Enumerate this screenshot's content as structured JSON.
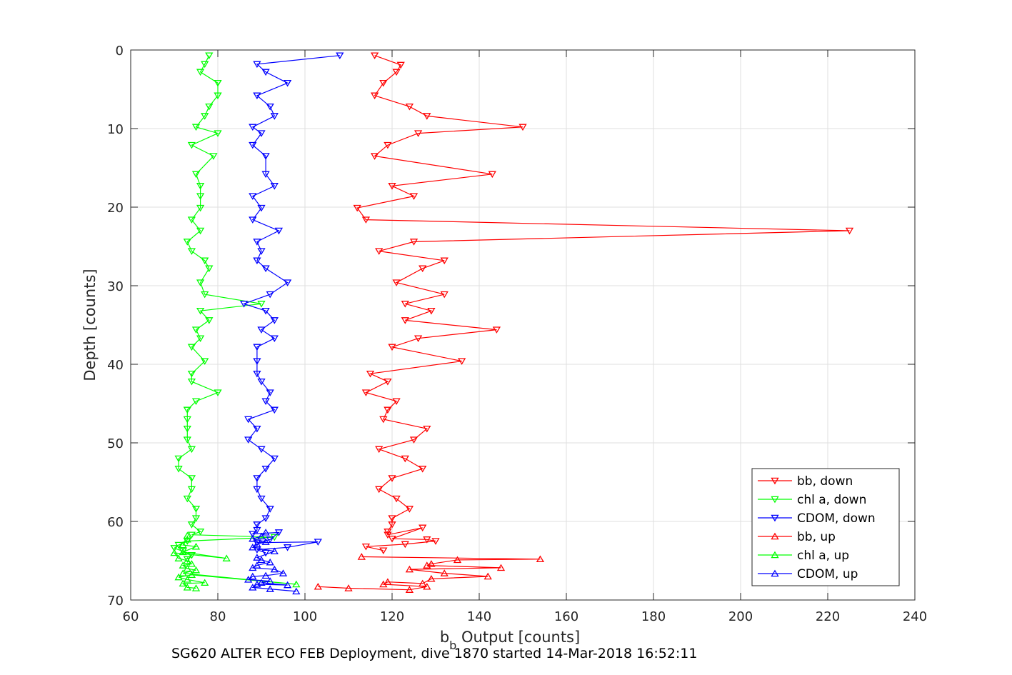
{
  "chart_data": {
    "type": "line",
    "xlabel": "b_b Output [counts]",
    "xlabel_main": "b",
    "xlabel_sub": "b",
    "xlabel_rest": " Output [counts]",
    "ylabel": "Depth [counts]",
    "caption": "SG620 ALTER ECO FEB Deployment, dive 1870 started 14-Mar-2018 16:52:11",
    "xlim": [
      60,
      240
    ],
    "ylim": [
      0,
      70
    ],
    "y_reversed": true,
    "grid": true,
    "legend_position": "bottom-right",
    "xticks": [
      "60",
      "80",
      "100",
      "120",
      "140",
      "160",
      "180",
      "200",
      "220",
      "240"
    ],
    "yticks": [
      "0",
      "10",
      "20",
      "30",
      "40",
      "50",
      "60",
      "70"
    ],
    "xtick_values": [
      60,
      80,
      100,
      120,
      140,
      160,
      180,
      200,
      220,
      240
    ],
    "ytick_values": [
      0,
      10,
      20,
      30,
      40,
      50,
      60,
      70
    ],
    "series": [
      {
        "name": "bb, down",
        "color": "#ff0000",
        "marker": "triangle-down",
        "x": [
          116,
          122,
          121,
          118,
          116,
          124,
          128,
          150,
          126,
          119,
          116,
          143,
          120,
          125,
          112,
          114,
          225,
          125,
          117,
          132,
          127,
          121,
          132,
          123,
          129,
          123,
          144,
          126,
          120,
          136,
          115,
          119,
          114,
          121,
          119,
          118,
          128,
          125,
          117,
          123,
          127,
          120,
          117,
          121,
          124,
          120,
          120,
          119,
          119,
          127,
          120,
          128,
          130,
          123,
          114,
          118
        ],
        "y": [
          0.7,
          1.9,
          2.8,
          4.2,
          5.8,
          7.2,
          8.4,
          9.8,
          10.6,
          12.1,
          13.5,
          15.8,
          17.3,
          18.6,
          20.1,
          21.6,
          23.0,
          24.4,
          25.6,
          26.8,
          27.8,
          29.6,
          31.1,
          32.3,
          33.2,
          34.4,
          35.6,
          36.7,
          37.8,
          39.6,
          41.2,
          42.2,
          43.6,
          44.7,
          45.8,
          47.0,
          48.2,
          49.6,
          50.8,
          52.0,
          53.3,
          54.5,
          55.9,
          57.1,
          58.4,
          59.6,
          60.4,
          61.3,
          61.7,
          60.8,
          62.2,
          62.3,
          62.5,
          62.9,
          63.2,
          63.7
        ]
      },
      {
        "name": "chl a, down",
        "color": "#00ff00",
        "marker": "triangle-down",
        "x": [
          78,
          77,
          76,
          80,
          80,
          78,
          77,
          75,
          80,
          74,
          79,
          75,
          76,
          76,
          76,
          74,
          76,
          73,
          74,
          77,
          78,
          76,
          77,
          90,
          76,
          78,
          75,
          76,
          74,
          77,
          74,
          74,
          80,
          75,
          73,
          73,
          73,
          73,
          74,
          71,
          71,
          74,
          74,
          73,
          75,
          75,
          74,
          76,
          74,
          93,
          73,
          71,
          70,
          72,
          74,
          73
        ],
        "y": [
          0.7,
          1.8,
          2.8,
          4.2,
          5.8,
          7.2,
          8.4,
          9.8,
          10.6,
          12.1,
          13.5,
          15.8,
          17.3,
          18.6,
          20.1,
          21.6,
          23.0,
          24.4,
          25.6,
          26.8,
          27.8,
          29.6,
          31.1,
          32.3,
          33.2,
          34.4,
          35.6,
          36.7,
          37.8,
          39.6,
          41.2,
          42.2,
          43.6,
          44.7,
          45.8,
          47.0,
          48.2,
          49.6,
          50.8,
          52.0,
          53.3,
          54.5,
          55.9,
          57.1,
          58.4,
          59.6,
          60.4,
          61.3,
          61.7,
          62.0,
          62.5,
          63.0,
          63.4,
          63.8,
          64.3,
          64.8
        ]
      },
      {
        "name": "CDOM, down",
        "color": "#0000ff",
        "marker": "triangle-down",
        "x": [
          108,
          89,
          91,
          96,
          89,
          92,
          93,
          88,
          90,
          88,
          91,
          91,
          93,
          88,
          90,
          88,
          94,
          89,
          90,
          89,
          91,
          96,
          92,
          86,
          91,
          93,
          90,
          93,
          89,
          89,
          89,
          90,
          92,
          91,
          93,
          87,
          89,
          87,
          90,
          93,
          91,
          89,
          89,
          90,
          92,
          91,
          89,
          89,
          88,
          94,
          92,
          89,
          103,
          96,
          89,
          91
        ],
        "y": [
          0.7,
          1.8,
          2.8,
          4.2,
          5.8,
          7.2,
          8.4,
          9.8,
          10.6,
          12.1,
          13.5,
          15.8,
          17.3,
          18.6,
          20.1,
          21.6,
          23.0,
          24.4,
          25.6,
          26.8,
          27.8,
          29.6,
          31.1,
          32.3,
          33.2,
          34.4,
          35.6,
          36.7,
          37.8,
          39.6,
          41.2,
          42.2,
          43.6,
          44.7,
          45.8,
          47.0,
          48.2,
          49.6,
          50.8,
          52.0,
          53.3,
          54.5,
          55.9,
          57.1,
          58.4,
          59.6,
          60.4,
          61.1,
          61.6,
          61.4,
          62.3,
          62.7,
          62.6,
          63.3,
          63.6,
          64.0
        ]
      },
      {
        "name": "bb, up",
        "color": "#ff0000",
        "marker": "triangle-up",
        "x": [
          103,
          110,
          124,
          128,
          118,
          119,
          127,
          129,
          142,
          132,
          124,
          145,
          128,
          129,
          135,
          154,
          113
        ],
        "y": [
          68.3,
          68.5,
          68.7,
          68.3,
          68.0,
          67.7,
          67.9,
          67.3,
          67.0,
          66.6,
          66.1,
          65.9,
          65.6,
          65.4,
          64.9,
          64.8,
          64.5
        ]
      },
      {
        "name": "chl a, up",
        "color": "#00ff00",
        "marker": "triangle-up",
        "x": [
          75,
          73,
          72,
          77,
          73,
          71,
          74,
          98,
          72,
          75,
          73,
          72,
          74,
          73,
          71,
          70,
          82,
          72,
          75,
          72,
          73,
          73
        ],
        "y": [
          68.5,
          68.4,
          67.9,
          67.8,
          67.4,
          67.1,
          66.8,
          68.0,
          66.6,
          66.2,
          66.0,
          65.6,
          65.4,
          65.0,
          64.7,
          64.0,
          64.7,
          63.9,
          63.2,
          63.0,
          62.3,
          61.8
        ]
      },
      {
        "name": "CDOM, up",
        "color": "#0000ff",
        "marker": "triangle-up",
        "x": [
          98,
          92,
          88,
          89,
          96,
          90,
          92,
          87,
          88,
          91,
          95,
          93,
          88,
          89,
          92,
          90,
          89,
          93,
          88,
          89,
          91,
          88,
          90,
          91
        ],
        "y": [
          68.9,
          68.6,
          68.4,
          68.0,
          68.1,
          67.8,
          67.6,
          67.4,
          67.0,
          66.9,
          66.6,
          66.1,
          65.9,
          65.6,
          65.2,
          64.9,
          64.6,
          63.8,
          63.3,
          62.9,
          62.6,
          62.2,
          61.9,
          61.4
        ]
      }
    ]
  }
}
